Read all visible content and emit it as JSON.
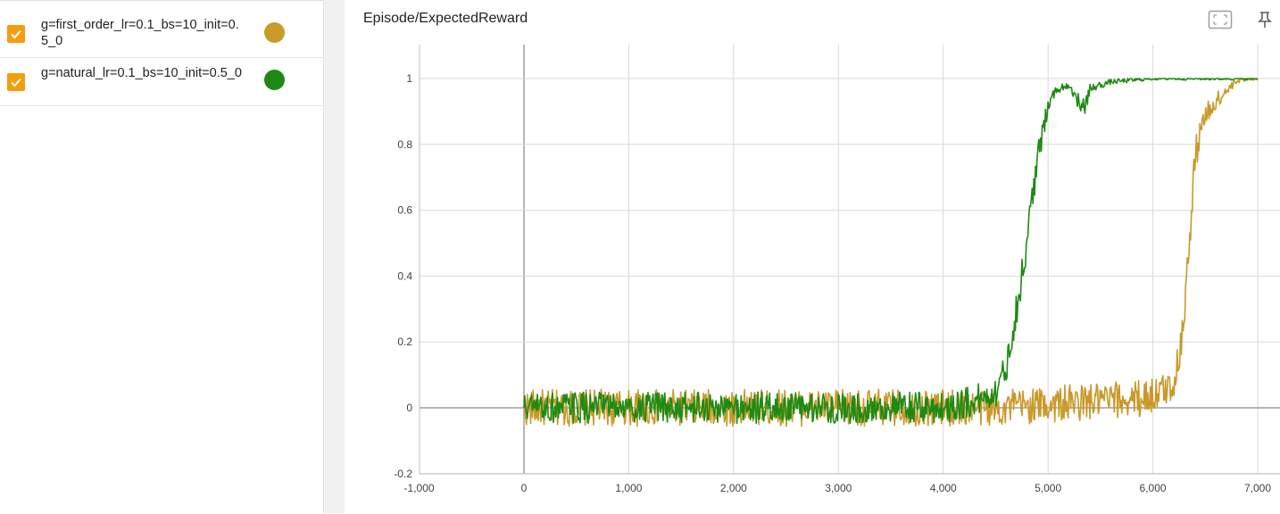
{
  "runs": [
    {
      "label": "g=first_order_lr=0.1_bs=10_init=0.5_0",
      "checked": true,
      "color": "#c9992a",
      "checkbox_color": "#f59e0b"
    },
    {
      "label": "g=natural_lr=0.1_bs=10_init=0.5_0",
      "checked": true,
      "color": "#1f8a13",
      "checkbox_color": "#f59e0b"
    }
  ],
  "chart": {
    "title": "Episode/ExpectedReward",
    "fullscreen_icon": "fullscreen-icon",
    "pin_icon": "pin-icon"
  },
  "chart_data": {
    "type": "line",
    "title": "Episode/ExpectedReward",
    "xlabel": "",
    "ylabel": "",
    "xlim": [
      -1000,
      7200
    ],
    "ylim": [
      -0.2,
      1.1
    ],
    "x_ticks": [
      "-1,000",
      "0",
      "1,000",
      "2,000",
      "3,000",
      "4,000",
      "5,000",
      "6,000",
      "7,000"
    ],
    "x_tick_values": [
      -1000,
      0,
      1000,
      2000,
      3000,
      4000,
      5000,
      6000,
      7000
    ],
    "y_ticks": [
      "-0.2",
      "0",
      "0.2",
      "0.4",
      "0.6",
      "0.8",
      "1"
    ],
    "y_tick_values": [
      -0.2,
      0,
      0.2,
      0.4,
      0.6,
      0.8,
      1
    ],
    "grid": true,
    "legend": "left-panel",
    "series": [
      {
        "name": "g=first_order_lr=0.1_bs=10_init=0.5_0",
        "color": "#c9992a",
        "keypoints": [
          [
            0,
            0.0
          ],
          [
            1000,
            0.0
          ],
          [
            2000,
            0.0
          ],
          [
            3000,
            0.0
          ],
          [
            4000,
            0.0
          ],
          [
            4500,
            0.0
          ],
          [
            5000,
            0.01
          ],
          [
            5500,
            0.02
          ],
          [
            5900,
            0.03
          ],
          [
            6100,
            0.05
          ],
          [
            6200,
            0.08
          ],
          [
            6250,
            0.15
          ],
          [
            6300,
            0.3
          ],
          [
            6350,
            0.5
          ],
          [
            6400,
            0.75
          ],
          [
            6450,
            0.85
          ],
          [
            6500,
            0.88
          ],
          [
            6600,
            0.93
          ],
          [
            6700,
            0.96
          ],
          [
            6800,
            0.99
          ],
          [
            6900,
            1.0
          ],
          [
            7000,
            1.0
          ]
        ],
        "noise": 0.035
      },
      {
        "name": "g=natural_lr=0.1_bs=10_init=0.5_0",
        "color": "#1f8a13",
        "keypoints": [
          [
            0,
            0.0
          ],
          [
            1000,
            0.0
          ],
          [
            2000,
            0.0
          ],
          [
            3000,
            0.0
          ],
          [
            4000,
            0.0
          ],
          [
            4300,
            0.02
          ],
          [
            4500,
            0.05
          ],
          [
            4600,
            0.12
          ],
          [
            4700,
            0.3
          ],
          [
            4750,
            0.4
          ],
          [
            4800,
            0.5
          ],
          [
            4850,
            0.65
          ],
          [
            4900,
            0.75
          ],
          [
            4950,
            0.83
          ],
          [
            5000,
            0.93
          ],
          [
            5100,
            0.97
          ],
          [
            5200,
            0.98
          ],
          [
            5350,
            0.9
          ],
          [
            5400,
            0.97
          ],
          [
            5600,
            0.99
          ],
          [
            6000,
            1.0
          ],
          [
            7000,
            1.0
          ]
        ],
        "noise": 0.03
      }
    ]
  }
}
